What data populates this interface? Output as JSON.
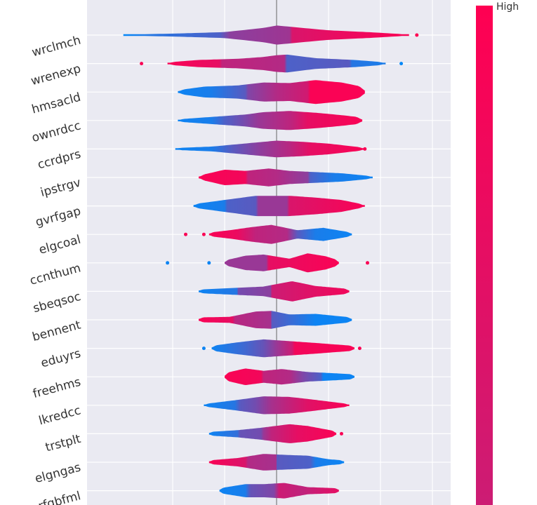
{
  "chart_data": {
    "type": "violin",
    "title": "",
    "xlabel": "",
    "ylabel": "",
    "xlim": [
      -6.5,
      6.0
    ],
    "grid": true,
    "zero_line_at": 0,
    "colors": {
      "background": "#eaeaf2",
      "grid": "#ffffff",
      "zero_line": "#666666",
      "low": "#008bfb",
      "high": "#ff0052"
    },
    "colorbar": {
      "high_label": "High",
      "low_label": "",
      "placement": "right"
    },
    "features": [
      {
        "name": "wrclmch",
        "min": -5.9,
        "max": 5.1,
        "outliers": [
          {
            "x": 5.4,
            "v": 1.0
          }
        ],
        "profile": [
          [
            -5.9,
            0.04
          ],
          [
            -4,
            0.12
          ],
          [
            -2,
            0.25
          ],
          [
            -0.5,
            0.6
          ],
          [
            0,
            0.8
          ],
          [
            0.5,
            0.7
          ],
          [
            2,
            0.4
          ],
          [
            3.5,
            0.25
          ],
          [
            5.1,
            0.05
          ]
        ],
        "colors": [
          [
            -5.9,
            0.02
          ],
          [
            -4.8,
            0.15
          ],
          [
            -2.2,
            0.3
          ],
          [
            -1.8,
            0.55
          ],
          [
            0.5,
            0.62
          ],
          [
            0.6,
            0.85
          ],
          [
            2.5,
            0.92
          ],
          [
            5.1,
            0.98
          ]
        ]
      },
      {
        "name": "wrenexp",
        "min": -4.2,
        "max": 4.2,
        "outliers": [
          {
            "x": -5.2,
            "v": 0.98
          },
          {
            "x": 4.8,
            "v": 0.02
          }
        ],
        "profile": [
          [
            -4.2,
            0.1
          ],
          [
            -3,
            0.3
          ],
          [
            -1.5,
            0.4
          ],
          [
            -0.5,
            0.55
          ],
          [
            0,
            0.7
          ],
          [
            0.4,
            0.75
          ],
          [
            1.5,
            0.45
          ],
          [
            3,
            0.3
          ],
          [
            4.2,
            0.1
          ]
        ],
        "colors": [
          [
            -4.2,
            0.98
          ],
          [
            -2.2,
            0.9
          ],
          [
            -2.1,
            0.75
          ],
          [
            0.3,
            0.7
          ],
          [
            0.4,
            0.3
          ],
          [
            2.8,
            0.35
          ],
          [
            2.9,
            0.15
          ],
          [
            4.2,
            0.1
          ]
        ]
      },
      {
        "name": "hmsacld",
        "min": -3.8,
        "max": 3.4,
        "outliers": [],
        "profile": [
          [
            -3.8,
            0.15
          ],
          [
            -2.8,
            0.45
          ],
          [
            -1.5,
            0.55
          ],
          [
            -0.5,
            0.8
          ],
          [
            0.5,
            0.75
          ],
          [
            1.5,
            1.0
          ],
          [
            2.5,
            0.8
          ],
          [
            3.4,
            0.4
          ]
        ],
        "colors": [
          [
            -3.8,
            0.05
          ],
          [
            -2.5,
            0.1
          ],
          [
            -1.2,
            0.35
          ],
          [
            -1.1,
            0.5
          ],
          [
            0,
            0.7
          ],
          [
            1.2,
            0.82
          ],
          [
            1.3,
            0.98
          ],
          [
            3.4,
            0.98
          ]
        ]
      },
      {
        "name": "ownrdcc",
        "min": -3.8,
        "max": 3.3,
        "outliers": [],
        "profile": [
          [
            -3.8,
            0.1
          ],
          [
            -2.5,
            0.3
          ],
          [
            -1.2,
            0.5
          ],
          [
            -0.5,
            0.7
          ],
          [
            0.5,
            0.8
          ],
          [
            1.5,
            0.65
          ],
          [
            2.5,
            0.45
          ],
          [
            3.3,
            0.25
          ]
        ],
        "colors": [
          [
            -3.8,
            0.05
          ],
          [
            -2.5,
            0.1
          ],
          [
            -2.0,
            0.3
          ],
          [
            -1.3,
            0.45
          ],
          [
            -0.7,
            0.6
          ],
          [
            0.6,
            0.75
          ],
          [
            1.2,
            0.9
          ],
          [
            3.3,
            0.98
          ]
        ]
      },
      {
        "name": "ccrdprs",
        "min": -3.9,
        "max": 3.4,
        "outliers": [
          {
            "x": 3.4,
            "v": 0.98
          }
        ],
        "profile": [
          [
            -3.9,
            0.08
          ],
          [
            -2.5,
            0.2
          ],
          [
            -1,
            0.5
          ],
          [
            0,
            0.7
          ],
          [
            1,
            0.6
          ],
          [
            2,
            0.45
          ],
          [
            3.4,
            0.1
          ]
        ],
        "colors": [
          [
            -3.9,
            0.05
          ],
          [
            -2.5,
            0.1
          ],
          [
            -1.7,
            0.35
          ],
          [
            -0.7,
            0.55
          ],
          [
            0.5,
            0.72
          ],
          [
            1.3,
            0.9
          ],
          [
            3.4,
            0.98
          ]
        ]
      },
      {
        "name": "ipstrgv",
        "min": -3.0,
        "max": 3.7,
        "outliers": [],
        "profile": [
          [
            -3.0,
            0.15
          ],
          [
            -2,
            0.65
          ],
          [
            -1.2,
            0.55
          ],
          [
            -0.3,
            0.75
          ],
          [
            0.5,
            0.55
          ],
          [
            1.5,
            0.45
          ],
          [
            2.5,
            0.35
          ],
          [
            3.7,
            0.1
          ]
        ],
        "colors": [
          [
            -3.0,
            0.98
          ],
          [
            -1.2,
            0.95
          ],
          [
            -1.1,
            0.75
          ],
          [
            0,
            0.7
          ],
          [
            1.2,
            0.55
          ],
          [
            1.3,
            0.3
          ],
          [
            2.2,
            0.1
          ],
          [
            3.7,
            0.05
          ]
        ]
      },
      {
        "name": "gvrfgap",
        "min": -3.2,
        "max": 3.4,
        "outliers": [],
        "profile": [
          [
            -3.2,
            0.15
          ],
          [
            -2,
            0.5
          ],
          [
            -0.8,
            0.85
          ],
          [
            0.5,
            0.85
          ],
          [
            1.5,
            0.7
          ],
          [
            2.5,
            0.5
          ],
          [
            3.4,
            0.1
          ]
        ],
        "colors": [
          [
            -3.2,
            0.05
          ],
          [
            -2.0,
            0.1
          ],
          [
            -1.9,
            0.3
          ],
          [
            -0.8,
            0.35
          ],
          [
            -0.7,
            0.6
          ],
          [
            0.4,
            0.6
          ],
          [
            0.5,
            0.85
          ],
          [
            3.4,
            0.98
          ]
        ]
      },
      {
        "name": "elgcoal",
        "min": -2.6,
        "max": 2.9,
        "outliers": [
          {
            "x": -3.5,
            "v": 0.98
          },
          {
            "x": -2.8,
            "v": 0.98
          }
        ],
        "profile": [
          [
            -2.6,
            0.15
          ],
          [
            -1.8,
            0.35
          ],
          [
            -1,
            0.6
          ],
          [
            -0.2,
            0.8
          ],
          [
            0.8,
            0.35
          ],
          [
            1.8,
            0.55
          ],
          [
            2.9,
            0.15
          ]
        ],
        "colors": [
          [
            -2.6,
            0.98
          ],
          [
            -1.5,
            0.92
          ],
          [
            -0.8,
            0.75
          ],
          [
            0.4,
            0.7
          ],
          [
            0.8,
            0.35
          ],
          [
            1.5,
            0.1
          ],
          [
            2.9,
            0.05
          ]
        ]
      },
      {
        "name": "ccnthum",
        "min": -2.0,
        "max": 2.4,
        "outliers": [
          {
            "x": -4.2,
            "v": 0.05
          },
          {
            "x": -2.6,
            "v": 0.05
          },
          {
            "x": 3.5,
            "v": 0.98
          }
        ],
        "profile": [
          [
            -2.0,
            0.2
          ],
          [
            -1.2,
            0.6
          ],
          [
            -0.5,
            0.7
          ],
          [
            0.5,
            0.35
          ],
          [
            1.2,
            0.8
          ],
          [
            1.9,
            0.55
          ],
          [
            2.4,
            0.2
          ]
        ],
        "colors": [
          [
            -2.0,
            0.6
          ],
          [
            -0.4,
            0.6
          ],
          [
            -0.3,
            0.9
          ],
          [
            2.4,
            0.98
          ]
        ]
      },
      {
        "name": "sbeqsoc",
        "min": -3.0,
        "max": 2.8,
        "outliers": [],
        "profile": [
          [
            -3.0,
            0.15
          ],
          [
            -1.5,
            0.3
          ],
          [
            -0.5,
            0.4
          ],
          [
            0.6,
            0.85
          ],
          [
            1.5,
            0.45
          ],
          [
            2.8,
            0.2
          ]
        ],
        "colors": [
          [
            -3.0,
            0.05
          ],
          [
            -1.5,
            0.15
          ],
          [
            -1.5,
            0.45
          ],
          [
            -0.2,
            0.55
          ],
          [
            -0.2,
            0.8
          ],
          [
            2.8,
            0.95
          ]
        ]
      },
      {
        "name": "bennent",
        "min": -3.0,
        "max": 2.9,
        "outliers": [],
        "profile": [
          [
            -3.0,
            0.2
          ],
          [
            -1.8,
            0.25
          ],
          [
            -0.8,
            0.7
          ],
          [
            -0.2,
            0.75
          ],
          [
            0.5,
            0.45
          ],
          [
            1.5,
            0.5
          ],
          [
            2.9,
            0.2
          ]
        ],
        "colors": [
          [
            -3.0,
            0.98
          ],
          [
            -1.7,
            0.9
          ],
          [
            -1.6,
            0.72
          ],
          [
            -0.2,
            0.65
          ],
          [
            -0.2,
            0.35
          ],
          [
            1.0,
            0.15
          ],
          [
            1.5,
            0.05
          ],
          [
            2.9,
            0.05
          ]
        ]
      },
      {
        "name": "eduyrs",
        "min": -2.5,
        "max": 3.0,
        "outliers": [
          {
            "x": -2.8,
            "v": 0.05
          },
          {
            "x": 3.2,
            "v": 0.98
          }
        ],
        "profile": [
          [
            -2.5,
            0.2
          ],
          [
            -1.5,
            0.5
          ],
          [
            -0.5,
            0.75
          ],
          [
            0.5,
            0.6
          ],
          [
            1.5,
            0.45
          ],
          [
            3.0,
            0.2
          ]
        ],
        "colors": [
          [
            -2.5,
            0.05
          ],
          [
            -1.2,
            0.25
          ],
          [
            -0.5,
            0.4
          ],
          [
            0,
            0.6
          ],
          [
            0.6,
            0.8
          ],
          [
            0.7,
            0.95
          ],
          [
            3.0,
            0.98
          ]
        ]
      },
      {
        "name": "freehms",
        "min": -2.0,
        "max": 3.0,
        "outliers": [],
        "profile": [
          [
            -2.0,
            0.3
          ],
          [
            -1.2,
            0.7
          ],
          [
            -0.5,
            0.5
          ],
          [
            0.2,
            0.65
          ],
          [
            1.2,
            0.4
          ],
          [
            2.2,
            0.3
          ],
          [
            3.0,
            0.2
          ]
        ],
        "colors": [
          [
            -2.0,
            0.98
          ],
          [
            -0.6,
            0.95
          ],
          [
            -0.5,
            0.75
          ],
          [
            0.5,
            0.7
          ],
          [
            1.0,
            0.5
          ],
          [
            1.7,
            0.3
          ],
          [
            1.8,
            0.05
          ],
          [
            3.0,
            0.05
          ]
        ]
      },
      {
        "name": "lkredcc",
        "min": -2.8,
        "max": 2.8,
        "outliers": [],
        "profile": [
          [
            -2.8,
            0.1
          ],
          [
            -1.5,
            0.45
          ],
          [
            -0.5,
            0.75
          ],
          [
            0.5,
            0.7
          ],
          [
            1.5,
            0.45
          ],
          [
            2.8,
            0.1
          ]
        ],
        "colors": [
          [
            -2.8,
            0.05
          ],
          [
            -1.6,
            0.15
          ],
          [
            -1.4,
            0.35
          ],
          [
            -0.8,
            0.45
          ],
          [
            -0.2,
            0.65
          ],
          [
            0.4,
            0.75
          ],
          [
            1.2,
            0.88
          ],
          [
            2.8,
            0.98
          ]
        ]
      },
      {
        "name": "trstplt",
        "min": -2.6,
        "max": 2.3,
        "outliers": [
          {
            "x": 2.5,
            "v": 0.98
          }
        ],
        "profile": [
          [
            -2.6,
            0.15
          ],
          [
            -1.5,
            0.3
          ],
          [
            -0.6,
            0.5
          ],
          [
            0.5,
            0.8
          ],
          [
            1.2,
            0.65
          ],
          [
            2.3,
            0.2
          ]
        ],
        "colors": [
          [
            -2.6,
            0.05
          ],
          [
            -1.5,
            0.2
          ],
          [
            -1.4,
            0.4
          ],
          [
            -0.6,
            0.45
          ],
          [
            -0.5,
            0.6
          ],
          [
            -0.2,
            0.75
          ],
          [
            0.8,
            0.9
          ],
          [
            2.3,
            0.98
          ]
        ]
      },
      {
        "name": "elgngas",
        "min": -2.6,
        "max": 2.6,
        "outliers": [],
        "profile": [
          [
            -2.6,
            0.15
          ],
          [
            -1.5,
            0.35
          ],
          [
            -0.5,
            0.7
          ],
          [
            0.5,
            0.6
          ],
          [
            1.2,
            0.55
          ],
          [
            2,
            0.25
          ],
          [
            2.6,
            0.15
          ]
        ],
        "colors": [
          [
            -2.6,
            0.98
          ],
          [
            -1.2,
            0.85
          ],
          [
            -1.1,
            0.7
          ],
          [
            0,
            0.65
          ],
          [
            0,
            0.35
          ],
          [
            1.3,
            0.3
          ],
          [
            1.5,
            0.1
          ],
          [
            2.6,
            0.05
          ]
        ]
      },
      {
        "name": "rfgbfml",
        "min": -2.2,
        "max": 2.4,
        "outliers": [],
        "profile": [
          [
            -2.2,
            0.2
          ],
          [
            -1.2,
            0.55
          ],
          [
            -0.5,
            0.55
          ],
          [
            0.3,
            0.65
          ],
          [
            1.2,
            0.3
          ],
          [
            2.4,
            0.2
          ]
        ],
        "colors": [
          [
            -2.2,
            0.05
          ],
          [
            -1.2,
            0.1
          ],
          [
            -1.0,
            0.4
          ],
          [
            -0.1,
            0.5
          ],
          [
            0.1,
            0.8
          ],
          [
            1.0,
            0.75
          ],
          [
            2.4,
            0.9
          ]
        ]
      }
    ]
  }
}
